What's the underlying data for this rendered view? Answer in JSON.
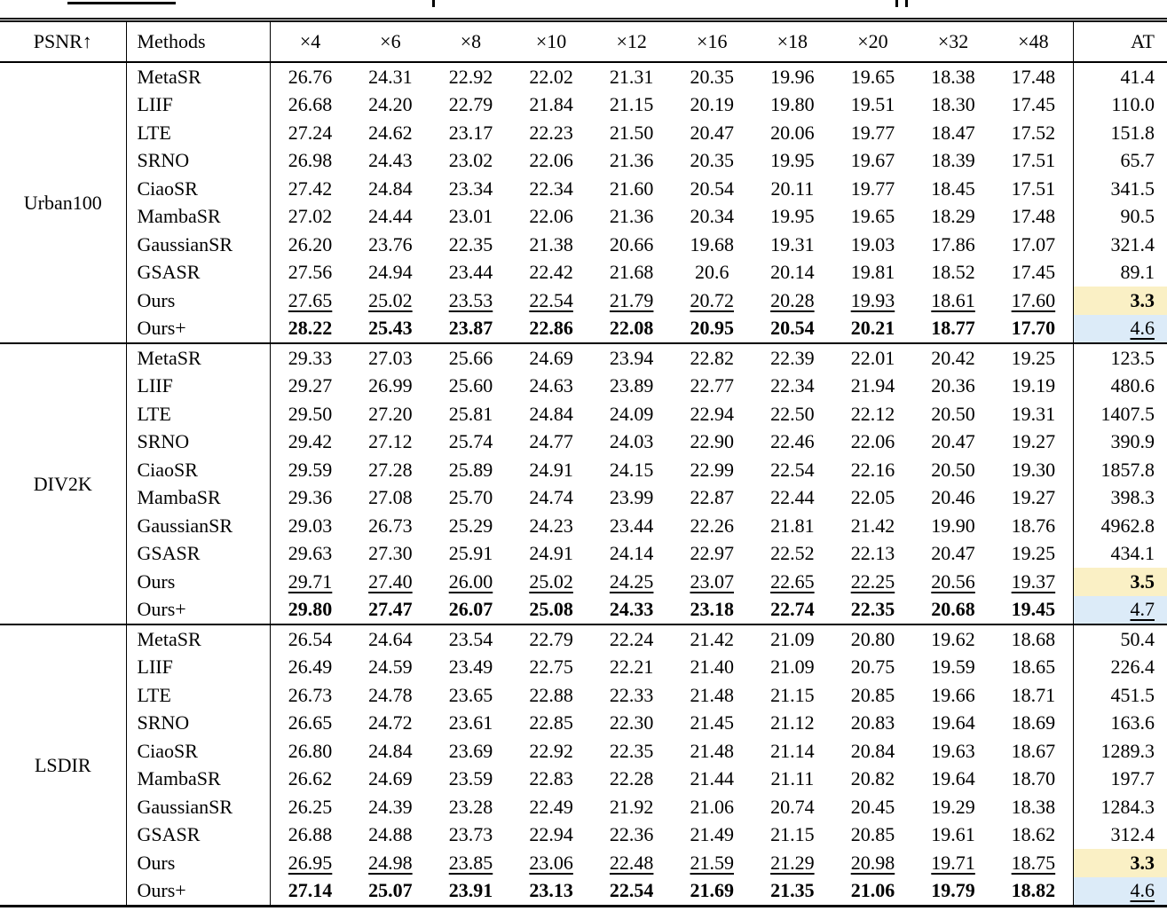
{
  "artifacts": {
    "cropped_caption_line": true
  },
  "colors": {
    "highlight_yellow": "#faf0c5",
    "highlight_blue": "#dcebf8",
    "rule_color": "#000000",
    "text_color": "#000000"
  },
  "table": {
    "header": {
      "metric": "PSNR↑",
      "methods": "Methods",
      "scales": [
        "×4",
        "×6",
        "×8",
        "×10",
        "×12",
        "×16",
        "×18",
        "×20",
        "×32",
        "×48"
      ],
      "at": "AT"
    },
    "groups": [
      {
        "dataset": "Urban100",
        "rows": [
          {
            "method": "MetaSR",
            "emphasis": "none",
            "values": [
              "26.76",
              "24.31",
              "22.92",
              "22.02",
              "21.31",
              "20.35",
              "19.96",
              "19.65",
              "18.38",
              "17.48"
            ],
            "at": "41.4",
            "at_bg": "",
            "at_style": ""
          },
          {
            "method": "LIIF",
            "emphasis": "none",
            "values": [
              "26.68",
              "24.20",
              "22.79",
              "21.84",
              "21.15",
              "20.19",
              "19.80",
              "19.51",
              "18.30",
              "17.45"
            ],
            "at": "110.0",
            "at_bg": "",
            "at_style": ""
          },
          {
            "method": "LTE",
            "emphasis": "none",
            "values": [
              "27.24",
              "24.62",
              "23.17",
              "22.23",
              "21.50",
              "20.47",
              "20.06",
              "19.77",
              "18.47",
              "17.52"
            ],
            "at": "151.8",
            "at_bg": "",
            "at_style": ""
          },
          {
            "method": "SRNO",
            "emphasis": "none",
            "values": [
              "26.98",
              "24.43",
              "23.02",
              "22.06",
              "21.36",
              "20.35",
              "19.95",
              "19.67",
              "18.39",
              "17.51"
            ],
            "at": "65.7",
            "at_bg": "",
            "at_style": ""
          },
          {
            "method": "CiaoSR",
            "emphasis": "none",
            "values": [
              "27.42",
              "24.84",
              "23.34",
              "22.34",
              "21.60",
              "20.54",
              "20.11",
              "19.77",
              "18.45",
              "17.51"
            ],
            "at": "341.5",
            "at_bg": "",
            "at_style": ""
          },
          {
            "method": "MambaSR",
            "emphasis": "none",
            "values": [
              "27.02",
              "24.44",
              "23.01",
              "22.06",
              "21.36",
              "20.34",
              "19.95",
              "19.65",
              "18.29",
              "17.48"
            ],
            "at": "90.5",
            "at_bg": "",
            "at_style": ""
          },
          {
            "method": "GaussianSR",
            "emphasis": "none",
            "values": [
              "26.20",
              "23.76",
              "22.35",
              "21.38",
              "20.66",
              "19.68",
              "19.31",
              "19.03",
              "17.86",
              "17.07"
            ],
            "at": "321.4",
            "at_bg": "",
            "at_style": ""
          },
          {
            "method": "GSASR",
            "emphasis": "none",
            "values": [
              "27.56",
              "24.94",
              "23.44",
              "22.42",
              "21.68",
              "20.6",
              "20.14",
              "19.81",
              "18.52",
              "17.45"
            ],
            "at": "89.1",
            "at_bg": "",
            "at_style": ""
          },
          {
            "method": "Ours",
            "emphasis": "underline",
            "values": [
              "27.65",
              "25.02",
              "23.53",
              "22.54",
              "21.79",
              "20.72",
              "20.28",
              "19.93",
              "18.61",
              "17.60"
            ],
            "at": "3.3",
            "at_bg": "yellow",
            "at_style": "bold"
          },
          {
            "method": "Ours+",
            "emphasis": "bold",
            "values": [
              "28.22",
              "25.43",
              "23.87",
              "22.86",
              "22.08",
              "20.95",
              "20.54",
              "20.21",
              "18.77",
              "17.70"
            ],
            "at": "4.6",
            "at_bg": "blue",
            "at_style": "underline"
          }
        ]
      },
      {
        "dataset": "DIV2K",
        "rows": [
          {
            "method": "MetaSR",
            "emphasis": "none",
            "values": [
              "29.33",
              "27.03",
              "25.66",
              "24.69",
              "23.94",
              "22.82",
              "22.39",
              "22.01",
              "20.42",
              "19.25"
            ],
            "at": "123.5",
            "at_bg": "",
            "at_style": ""
          },
          {
            "method": "LIIF",
            "emphasis": "none",
            "values": [
              "29.27",
              "26.99",
              "25.60",
              "24.63",
              "23.89",
              "22.77",
              "22.34",
              "21.94",
              "20.36",
              "19.19"
            ],
            "at": "480.6",
            "at_bg": "",
            "at_style": ""
          },
          {
            "method": "LTE",
            "emphasis": "none",
            "values": [
              "29.50",
              "27.20",
              "25.81",
              "24.84",
              "24.09",
              "22.94",
              "22.50",
              "22.12",
              "20.50",
              "19.31"
            ],
            "at": "1407.5",
            "at_bg": "",
            "at_style": ""
          },
          {
            "method": "SRNO",
            "emphasis": "none",
            "values": [
              "29.42",
              "27.12",
              "25.74",
              "24.77",
              "24.03",
              "22.90",
              "22.46",
              "22.06",
              "20.47",
              "19.27"
            ],
            "at": "390.9",
            "at_bg": "",
            "at_style": ""
          },
          {
            "method": "CiaoSR",
            "emphasis": "none",
            "values": [
              "29.59",
              "27.28",
              "25.89",
              "24.91",
              "24.15",
              "22.99",
              "22.54",
              "22.16",
              "20.50",
              "19.30"
            ],
            "at": "1857.8",
            "at_bg": "",
            "at_style": ""
          },
          {
            "method": "MambaSR",
            "emphasis": "none",
            "values": [
              "29.36",
              "27.08",
              "25.70",
              "24.74",
              "23.99",
              "22.87",
              "22.44",
              "22.05",
              "20.46",
              "19.27"
            ],
            "at": "398.3",
            "at_bg": "",
            "at_style": ""
          },
          {
            "method": "GaussianSR",
            "emphasis": "none",
            "values": [
              "29.03",
              "26.73",
              "25.29",
              "24.23",
              "23.44",
              "22.26",
              "21.81",
              "21.42",
              "19.90",
              "18.76"
            ],
            "at": "4962.8",
            "at_bg": "",
            "at_style": ""
          },
          {
            "method": "GSASR",
            "emphasis": "none",
            "values": [
              "29.63",
              "27.30",
              "25.91",
              "24.91",
              "24.14",
              "22.97",
              "22.52",
              "22.13",
              "20.47",
              "19.25"
            ],
            "at": "434.1",
            "at_bg": "",
            "at_style": ""
          },
          {
            "method": "Ours",
            "emphasis": "underline",
            "values": [
              "29.71",
              "27.40",
              "26.00",
              "25.02",
              "24.25",
              "23.07",
              "22.65",
              "22.25",
              "20.56",
              "19.37"
            ],
            "at": "3.5",
            "at_bg": "yellow",
            "at_style": "bold"
          },
          {
            "method": "Ours+",
            "emphasis": "bold",
            "values": [
              "29.80",
              "27.47",
              "26.07",
              "25.08",
              "24.33",
              "23.18",
              "22.74",
              "22.35",
              "20.68",
              "19.45"
            ],
            "at": "4.7",
            "at_bg": "blue",
            "at_style": "underline"
          }
        ]
      },
      {
        "dataset": "LSDIR",
        "rows": [
          {
            "method": "MetaSR",
            "emphasis": "none",
            "values": [
              "26.54",
              "24.64",
              "23.54",
              "22.79",
              "22.24",
              "21.42",
              "21.09",
              "20.80",
              "19.62",
              "18.68"
            ],
            "at": "50.4",
            "at_bg": "",
            "at_style": ""
          },
          {
            "method": "LIIF",
            "emphasis": "none",
            "values": [
              "26.49",
              "24.59",
              "23.49",
              "22.75",
              "22.21",
              "21.40",
              "21.09",
              "20.75",
              "19.59",
              "18.65"
            ],
            "at": "226.4",
            "at_bg": "",
            "at_style": ""
          },
          {
            "method": "LTE",
            "emphasis": "none",
            "values": [
              "26.73",
              "24.78",
              "23.65",
              "22.88",
              "22.33",
              "21.48",
              "21.15",
              "20.85",
              "19.66",
              "18.71"
            ],
            "at": "451.5",
            "at_bg": "",
            "at_style": ""
          },
          {
            "method": "SRNO",
            "emphasis": "none",
            "values": [
              "26.65",
              "24.72",
              "23.61",
              "22.85",
              "22.30",
              "21.45",
              "21.12",
              "20.83",
              "19.64",
              "18.69"
            ],
            "at": "163.6",
            "at_bg": "",
            "at_style": ""
          },
          {
            "method": "CiaoSR",
            "emphasis": "none",
            "values": [
              "26.80",
              "24.84",
              "23.69",
              "22.92",
              "22.35",
              "21.48",
              "21.14",
              "20.84",
              "19.63",
              "18.67"
            ],
            "at": "1289.3",
            "at_bg": "",
            "at_style": ""
          },
          {
            "method": "MambaSR",
            "emphasis": "none",
            "values": [
              "26.62",
              "24.69",
              "23.59",
              "22.83",
              "22.28",
              "21.44",
              "21.11",
              "20.82",
              "19.64",
              "18.70"
            ],
            "at": "197.7",
            "at_bg": "",
            "at_style": ""
          },
          {
            "method": "GaussianSR",
            "emphasis": "none",
            "values": [
              "26.25",
              "24.39",
              "23.28",
              "22.49",
              "21.92",
              "21.06",
              "20.74",
              "20.45",
              "19.29",
              "18.38"
            ],
            "at": "1284.3",
            "at_bg": "",
            "at_style": ""
          },
          {
            "method": "GSASR",
            "emphasis": "none",
            "values": [
              "26.88",
              "24.88",
              "23.73",
              "22.94",
              "22.36",
              "21.49",
              "21.15",
              "20.85",
              "19.61",
              "18.62"
            ],
            "at": "312.4",
            "at_bg": "",
            "at_style": ""
          },
          {
            "method": "Ours",
            "emphasis": "underline",
            "values": [
              "26.95",
              "24.98",
              "23.85",
              "23.06",
              "22.48",
              "21.59",
              "21.29",
              "20.98",
              "19.71",
              "18.75"
            ],
            "at": "3.3",
            "at_bg": "yellow",
            "at_style": "bold"
          },
          {
            "method": "Ours+",
            "emphasis": "bold",
            "values": [
              "27.14",
              "25.07",
              "23.91",
              "23.13",
              "22.54",
              "21.69",
              "21.35",
              "21.06",
              "19.79",
              "18.82"
            ],
            "at": "4.6",
            "at_bg": "blue",
            "at_style": "underline"
          }
        ]
      }
    ]
  }
}
